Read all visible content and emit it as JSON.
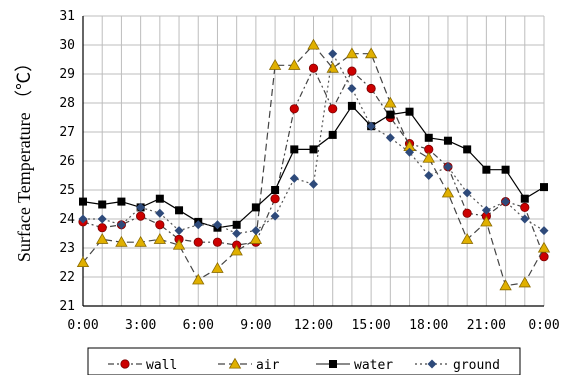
{
  "chart_data": {
    "type": "line",
    "ylabel": "Surface Temperature （℃）",
    "xlabel": "",
    "ylim": [
      21,
      31
    ],
    "y_ticks": [
      "21",
      "22",
      "23",
      "24",
      "25",
      "26",
      "27",
      "28",
      "29",
      "30",
      "31"
    ],
    "x_ticks": [
      "0:00",
      "3:00",
      "6:00",
      "9:00",
      "12:00",
      "15:00",
      "18:00",
      "21:00",
      "0:00"
    ],
    "grid": true,
    "legend_position": "bottom",
    "hours": [
      0,
      1,
      2,
      3,
      4,
      5,
      6,
      7,
      8,
      9,
      10,
      11,
      12,
      13,
      14,
      15,
      16,
      17,
      18,
      19,
      20,
      21,
      22,
      23,
      24
    ],
    "series": [
      {
        "name": "wall",
        "color": "#cc0000",
        "marker": "circle",
        "dash": "6,3,2,3",
        "values": [
          23.9,
          23.7,
          23.8,
          24.1,
          23.8,
          23.3,
          23.2,
          23.2,
          23.1,
          23.2,
          24.7,
          27.8,
          29.2,
          27.8,
          29.1,
          28.5,
          27.5,
          26.6,
          26.4,
          25.8,
          24.2,
          24.1,
          24.6,
          24.4,
          22.7
        ]
      },
      {
        "name": "air",
        "color": "#e0b000",
        "marker": "triangle",
        "dash": "7,4",
        "values": [
          22.5,
          23.3,
          23.2,
          23.2,
          23.3,
          23.1,
          21.9,
          22.3,
          22.9,
          23.3,
          29.3,
          29.3,
          30.0,
          29.2,
          29.7,
          29.7,
          28.0,
          26.5,
          26.1,
          24.9,
          23.3,
          23.9,
          21.7,
          21.8,
          23.0
        ]
      },
      {
        "name": "water",
        "color": "#000000",
        "marker": "square",
        "dash": "",
        "values": [
          24.6,
          24.5,
          24.6,
          24.4,
          24.7,
          24.3,
          23.9,
          23.7,
          23.8,
          24.4,
          25.0,
          26.4,
          26.4,
          26.9,
          27.9,
          27.2,
          27.6,
          27.7,
          26.8,
          26.7,
          26.4,
          25.7,
          25.7,
          24.7,
          25.1
        ]
      },
      {
        "name": "ground",
        "color": "#2e4a7a",
        "marker": "diamond",
        "dash": "2,3",
        "values": [
          24.0,
          24.0,
          23.8,
          24.4,
          24.2,
          23.6,
          23.8,
          23.8,
          23.5,
          23.6,
          24.1,
          25.4,
          25.2,
          29.7,
          28.5,
          27.2,
          26.8,
          26.3,
          25.5,
          25.8,
          24.9,
          24.3,
          24.6,
          24.0,
          23.6
        ]
      }
    ]
  }
}
